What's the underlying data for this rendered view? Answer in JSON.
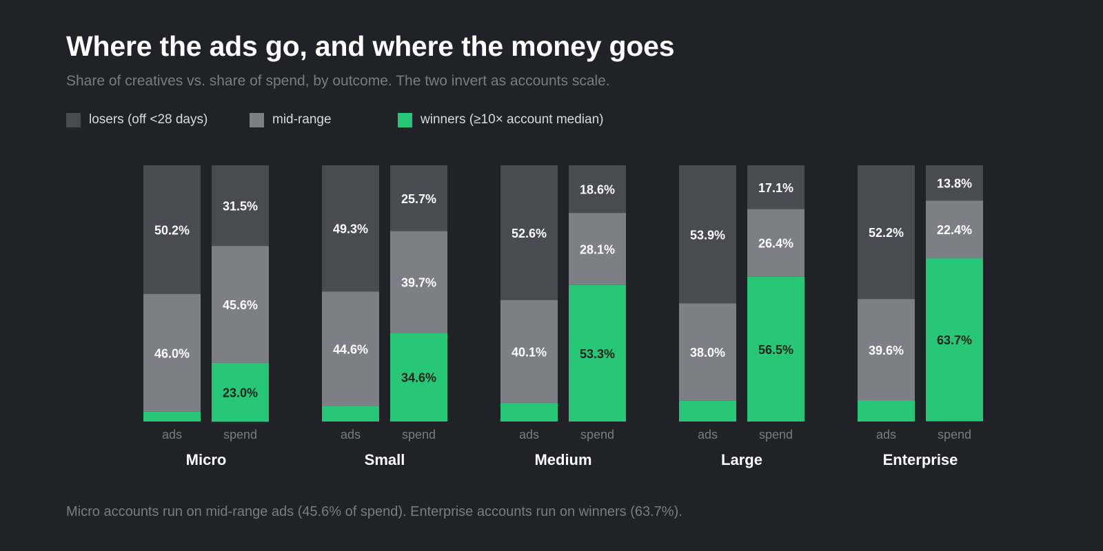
{
  "title": "Where the ads go, and where the money goes",
  "subtitle": "Share of creatives vs. share of spend, by outcome. The two invert as accounts scale.",
  "footnote": "Micro accounts run on mid-range ads (45.6% of spend). Enterprise accounts run on winners (63.7%).",
  "legend": [
    {
      "label": "losers (off <28 days)",
      "color": "#494a52"
    },
    {
      "label": "mid-range",
      "color": "#7e7f86"
    },
    {
      "label": "winners (≥10× account median)",
      "color": "#28c777"
    }
  ],
  "chart_data": {
    "type": "bar",
    "stacked": true,
    "normalized": true,
    "groups": [
      "Micro",
      "Small",
      "Medium",
      "Large",
      "Enterprise"
    ],
    "bar_labels": [
      "ads",
      "spend"
    ],
    "segments": [
      "losers (off <28 days)",
      "mid-range",
      "winners (≥10× account median)"
    ],
    "colors": {
      "losers (off <28 days)": "#494a52",
      "mid-range": "#7e7f86",
      "winners (≥10× account median)": "#28c777"
    },
    "label_colors": {
      "losers (off <28 days)": "#ffffff",
      "mid-range": "#ffffff",
      "winners (≥10× account median)": "#11241a"
    },
    "values": {
      "Micro": {
        "ads": {
          "losers (off <28 days)": 50.2,
          "mid-range": 46.0,
          "winners (≥10× account median)": 3.8
        },
        "spend": {
          "losers (off <28 days)": 31.5,
          "mid-range": 45.6,
          "winners (≥10× account median)": 23.0
        }
      },
      "Small": {
        "ads": {
          "losers (off <28 days)": 49.3,
          "mid-range": 44.6,
          "winners (≥10× account median)": 6.1
        },
        "spend": {
          "losers (off <28 days)": 25.7,
          "mid-range": 39.7,
          "winners (≥10× account median)": 34.6
        }
      },
      "Medium": {
        "ads": {
          "losers (off <28 days)": 52.6,
          "mid-range": 40.1,
          "winners (≥10× account median)": 7.3
        },
        "spend": {
          "losers (off <28 days)": 18.6,
          "mid-range": 28.1,
          "winners (≥10× account median)": 53.3
        }
      },
      "Large": {
        "ads": {
          "losers (off <28 days)": 53.9,
          "mid-range": 38.0,
          "winners (≥10× account median)": 8.1
        },
        "spend": {
          "losers (off <28 days)": 17.1,
          "mid-range": 26.4,
          "winners (≥10× account median)": 56.5
        }
      },
      "Enterprise": {
        "ads": {
          "losers (off <28 days)": 52.2,
          "mid-range": 39.6,
          "winners (≥10× account median)": 8.2
        },
        "spend": {
          "losers (off <28 days)": 13.8,
          "mid-range": 22.4,
          "winners (≥10× account median)": 63.7
        }
      }
    },
    "min_labeled_percent": 10,
    "ylim": [
      0,
      100
    ],
    "grid": false,
    "legend_position": "top-left"
  }
}
